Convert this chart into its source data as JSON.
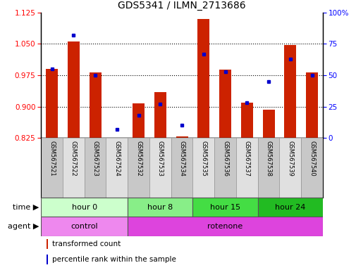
{
  "title": "GDS5341 / ILMN_2713686",
  "samples": [
    "GSM567521",
    "GSM567522",
    "GSM567523",
    "GSM567524",
    "GSM567532",
    "GSM567533",
    "GSM567534",
    "GSM567535",
    "GSM567536",
    "GSM567537",
    "GSM567538",
    "GSM567539",
    "GSM567540"
  ],
  "transformed_count": [
    0.99,
    1.055,
    0.982,
    0.825,
    0.907,
    0.935,
    0.828,
    1.11,
    0.988,
    0.91,
    0.893,
    1.047,
    0.982
  ],
  "percentile_rank": [
    55,
    82,
    50,
    7,
    18,
    27,
    10,
    67,
    53,
    28,
    45,
    63,
    50
  ],
  "ylim_left": [
    0.825,
    1.125
  ],
  "ylim_right": [
    0,
    100
  ],
  "yticks_left": [
    0.825,
    0.9,
    0.975,
    1.05,
    1.125
  ],
  "yticks_right": [
    0,
    25,
    50,
    75,
    100
  ],
  "bar_color": "#cc2200",
  "dot_color": "#0000cc",
  "groups": [
    {
      "label": "hour 0",
      "start": 0,
      "end": 4,
      "color": "#ccffcc"
    },
    {
      "label": "hour 8",
      "start": 4,
      "end": 7,
      "color": "#88ee88"
    },
    {
      "label": "hour 15",
      "start": 7,
      "end": 10,
      "color": "#44dd44"
    },
    {
      "label": "hour 24",
      "start": 10,
      "end": 13,
      "color": "#22bb22"
    }
  ],
  "agents": [
    {
      "label": "control",
      "start": 0,
      "end": 4,
      "color": "#ee88ee"
    },
    {
      "label": "rotenone",
      "start": 4,
      "end": 13,
      "color": "#dd44dd"
    }
  ],
  "time_label": "time",
  "agent_label": "agent",
  "legend_red": "transformed count",
  "legend_blue": "percentile rank within the sample",
  "background_color": "#ffffff"
}
